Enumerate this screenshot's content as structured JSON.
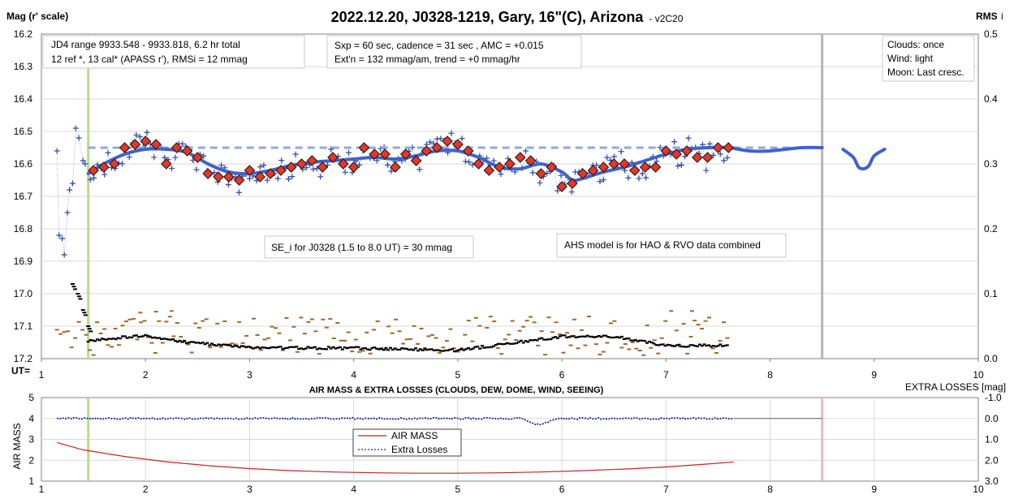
{
  "chart_data": [
    {
      "type": "scatter",
      "title": "2022.12.20, J0328-1219, Gary, 16\"(C), Arizona",
      "version": "- v2C20",
      "ylabel": "Mag (r' scale)",
      "y2label": "RMS",
      "y2label_suffix": "i",
      "xlabel": "UT=",
      "xlim": [
        1,
        10
      ],
      "ylim": [
        16.2,
        17.2
      ],
      "y_inverted": true,
      "y2lim": [
        0.0,
        0.5
      ],
      "x_ticks": [
        "1",
        "2",
        "3",
        "4",
        "5",
        "6",
        "7",
        "8",
        "9",
        "10"
      ],
      "y_ticks": [
        "16.2",
        "16.3",
        "16.4",
        "16.5",
        "16.6",
        "16.7",
        "16.8",
        "16.9",
        "17.0",
        "17.1",
        "17.2"
      ],
      "y2_ticks": [
        "0.5",
        "0.4",
        "0.3",
        "0.2",
        "0.1",
        "0.0"
      ],
      "grid": true,
      "colors": {
        "individual": "#2c4aa8",
        "binned_fill": "#e0392b",
        "model": "#3f63cc",
        "flat": "#90a8e0",
        "rms": "#000000",
        "extra": "#a3662a",
        "green_line": "#b8dc8c",
        "gray_line": "#b5b5b5"
      },
      "vertical_lines": [
        {
          "x": 1.45,
          "color": "#b8dc8c"
        },
        {
          "x": 8.5,
          "color": "#b5b5b5"
        }
      ],
      "annotations": {
        "jd": [
          "JD4 range 9933.548 - 9933.818, 6.2 hr total",
          "12 ref *, 13 cal*  (APASS r'), RMSi = 12 mmag"
        ],
        "sxp": [
          "Sxp = 60 sec, cadence = 31 sec , AMC = +0.015",
          "Ext'n = 132 mmag/am, trend = +0 mmag/hr"
        ],
        "weather": [
          "Clouds: once",
          "Wind:  light",
          "Moon: Last cresc."
        ],
        "se": "SE_i for J0328 (1.5 to 8.0 UT) = 30 mmag",
        "ahs": "AHS model is for HAO & RVO data combined"
      },
      "binned": {
        "x": [
          1.5,
          1.6,
          1.7,
          1.8,
          1.9,
          2.0,
          2.1,
          2.2,
          2.3,
          2.4,
          2.5,
          2.6,
          2.7,
          2.8,
          2.9,
          3.0,
          3.1,
          3.2,
          3.3,
          3.4,
          3.5,
          3.6,
          3.7,
          3.8,
          3.9,
          4.0,
          4.1,
          4.2,
          4.3,
          4.4,
          4.5,
          4.6,
          4.7,
          4.8,
          4.9,
          5.0,
          5.1,
          5.2,
          5.3,
          5.4,
          5.5,
          5.6,
          5.7,
          5.8,
          5.9,
          6.0,
          6.1,
          6.2,
          6.3,
          6.4,
          6.5,
          6.6,
          6.7,
          6.8,
          6.9,
          7.0,
          7.1,
          7.2,
          7.3,
          7.4,
          7.5,
          7.6
        ],
        "y": [
          16.62,
          16.61,
          16.6,
          16.55,
          16.54,
          16.53,
          16.54,
          16.6,
          16.55,
          16.56,
          16.58,
          16.63,
          16.64,
          16.64,
          16.65,
          16.62,
          16.64,
          16.63,
          16.62,
          16.61,
          16.6,
          16.59,
          16.61,
          16.58,
          16.6,
          16.61,
          16.55,
          16.57,
          16.57,
          16.61,
          16.57,
          16.59,
          16.56,
          16.55,
          16.53,
          16.54,
          16.56,
          16.6,
          16.62,
          16.61,
          16.6,
          16.58,
          16.59,
          16.63,
          16.61,
          16.67,
          16.66,
          16.63,
          16.62,
          16.61,
          16.6,
          16.6,
          16.62,
          16.61,
          16.61,
          16.56,
          16.57,
          16.56,
          16.58,
          16.58,
          16.55,
          16.55
        ]
      },
      "model": {
        "x": [
          1.45,
          1.6,
          1.8,
          2.0,
          2.2,
          2.4,
          2.6,
          2.8,
          3.0,
          3.2,
          3.4,
          3.6,
          3.8,
          4.0,
          4.2,
          4.4,
          4.6,
          4.8,
          5.0,
          5.2,
          5.4,
          5.6,
          5.8,
          6.0,
          6.1,
          6.2,
          6.4,
          6.6,
          6.8,
          7.0,
          7.2,
          7.4,
          7.6,
          7.8,
          8.0,
          8.3,
          8.5
        ],
        "y": [
          16.63,
          16.6,
          16.57,
          16.555,
          16.555,
          16.565,
          16.6,
          16.625,
          16.63,
          16.62,
          16.605,
          16.595,
          16.59,
          16.585,
          16.58,
          16.585,
          16.575,
          16.56,
          16.56,
          16.58,
          16.61,
          16.615,
          16.6,
          16.625,
          16.65,
          16.645,
          16.625,
          16.61,
          16.59,
          16.57,
          16.555,
          16.55,
          16.55,
          16.56,
          16.56,
          16.55,
          16.55
        ]
      },
      "model_dip": {
        "x": [
          8.7,
          8.8,
          8.85,
          8.9,
          8.95,
          9.0,
          9.1
        ],
        "y": [
          16.555,
          16.58,
          16.61,
          16.615,
          16.605,
          16.575,
          16.555
        ]
      },
      "flat": {
        "x": [
          1.45,
          8.5
        ],
        "y": [
          16.55,
          16.55
        ]
      },
      "rms_level": {
        "x": [
          1.45,
          2.0,
          2.3,
          3.0,
          4.0,
          5.0,
          6.0,
          6.5,
          7.0,
          7.6
        ],
        "y": [
          0.027,
          0.036,
          0.027,
          0.017,
          0.016,
          0.013,
          0.034,
          0.034,
          0.02,
          0.02
        ]
      },
      "rms_startup": {
        "x": [
          1.3,
          1.35,
          1.4,
          1.45
        ],
        "y": [
          0.115,
          0.1,
          0.075,
          0.05
        ]
      }
    },
    {
      "type": "line",
      "title": "AIR MASS & EXTRA LOSSES (CLOUDS, DEW, DOME, WIND, SEEING)",
      "ylabel": "AIR MASS",
      "y2label": "EXTRA LOSSES [mag]",
      "xlim": [
        1,
        10
      ],
      "ylim": [
        1,
        5
      ],
      "y2lim": [
        -1.0,
        3.0
      ],
      "x_ticks": [
        "1",
        "2",
        "3",
        "4",
        "5",
        "6",
        "7",
        "8",
        "9",
        "10"
      ],
      "y_ticks": [
        "5",
        "4",
        "3",
        "2",
        "1"
      ],
      "y2_ticks": [
        "-1.0",
        "0.0",
        "1.0",
        "2.0",
        "3.0"
      ],
      "legend": [
        "AIR MASS",
        "Extra Losses"
      ],
      "colors": {
        "airmass": "#cc2222",
        "extra": "#1a2aa8",
        "green_line": "#b8dc8c",
        "red_line": "#f2b8c0"
      },
      "vertical_lines": [
        {
          "x": 1.45,
          "color": "#b8dc8c"
        },
        {
          "x": 8.5,
          "color": "#f2b8c0"
        }
      ],
      "airmass": {
        "x": [
          1.15,
          1.4,
          1.8,
          2.2,
          2.6,
          3.0,
          3.4,
          3.8,
          4.2,
          4.6,
          5.0,
          5.4,
          5.8,
          6.2,
          6.6,
          7.0,
          7.4,
          7.65
        ],
        "y": [
          2.85,
          2.5,
          2.18,
          1.93,
          1.74,
          1.6,
          1.5,
          1.44,
          1.4,
          1.38,
          1.38,
          1.4,
          1.44,
          1.5,
          1.58,
          1.68,
          1.82,
          1.92
        ]
      },
      "extra_losses": {
        "baseline": 0.0,
        "dip_x": [
          5.6,
          5.7,
          5.75,
          5.8,
          5.9,
          6.0
        ],
        "dip_y": [
          0.0,
          0.15,
          0.3,
          0.25,
          0.1,
          0.0
        ],
        "x_range": [
          1.15,
          7.65
        ]
      }
    }
  ]
}
